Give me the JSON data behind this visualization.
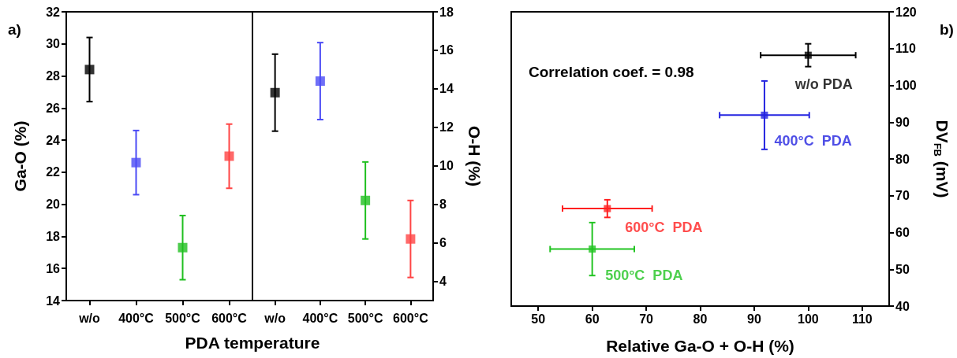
{
  "chart_data": [
    {
      "type": "scatter",
      "xlabel": "PDA temperature",
      "ylabel": "Ga-O (%)",
      "annotations": [
        "a)"
      ],
      "categories": [
        "w/o",
        "400°C",
        "500°C",
        "600°C"
      ],
      "ylim": [
        14,
        32
      ],
      "yticks": [
        14,
        16,
        18,
        20,
        22,
        24,
        26,
        28,
        30,
        32
      ],
      "marker": "square",
      "values": [
        28.4,
        22.6,
        17.3,
        23.0
      ],
      "errors": [
        2,
        2,
        2,
        2
      ],
      "colors": [
        "#000000",
        "#4b4bf5",
        "#1fbf1f",
        "#ff4444"
      ]
    },
    {
      "type": "scatter",
      "ylabel": "O-H (%)",
      "categories": [
        "w/o",
        "400°C",
        "500°C",
        "600°C"
      ],
      "ylim": [
        3,
        18
      ],
      "yticks": [
        4,
        6,
        8,
        10,
        12,
        14,
        16,
        18
      ],
      "marker": "square",
      "values": [
        13.8,
        14.4,
        8.2,
        6.2
      ],
      "errors": [
        2,
        2,
        2,
        2
      ],
      "colors": [
        "#000000",
        "#4b4bf5",
        "#1fbf1f",
        "#ff4444"
      ]
    },
    {
      "type": "scatter",
      "xlabel": "Relative Ga-O + O-H (%)",
      "ylabel": "DV$_{FB}$ (mV)",
      "annotations": [
        "Correlation coef. = 0.98",
        "b)"
      ],
      "xlim": [
        45,
        115
      ],
      "xticks": [
        50,
        60,
        70,
        80,
        90,
        100,
        110
      ],
      "ylim": [
        40,
        120
      ],
      "yticks": [
        40,
        50,
        60,
        70,
        80,
        90,
        100,
        110,
        120
      ],
      "marker": "square",
      "series": [
        {
          "name": "w/o PDA",
          "color": "#000000",
          "x": [
            100
          ],
          "values": [
            108.2
          ],
          "errors": [
            3.1
          ],
          "xerrors": [
            8.8
          ]
        },
        {
          "name": "400°C  PDA",
          "color": "#2323e0",
          "x": [
            91.9
          ],
          "values": [
            91.9
          ],
          "errors": [
            9.3
          ],
          "xerrors": [
            8.3
          ]
        },
        {
          "name": "600°C  PDA",
          "color": "#ff2020",
          "x": [
            62.8
          ],
          "values": [
            66.5
          ],
          "errors": [
            2.4
          ],
          "xerrors": [
            8.3
          ]
        },
        {
          "name": "500°C  PDA",
          "color": "#22c422",
          "x": [
            60
          ],
          "values": [
            55.5
          ],
          "errors": [
            7.2
          ],
          "xerrors": [
            7.8
          ]
        }
      ]
    }
  ]
}
